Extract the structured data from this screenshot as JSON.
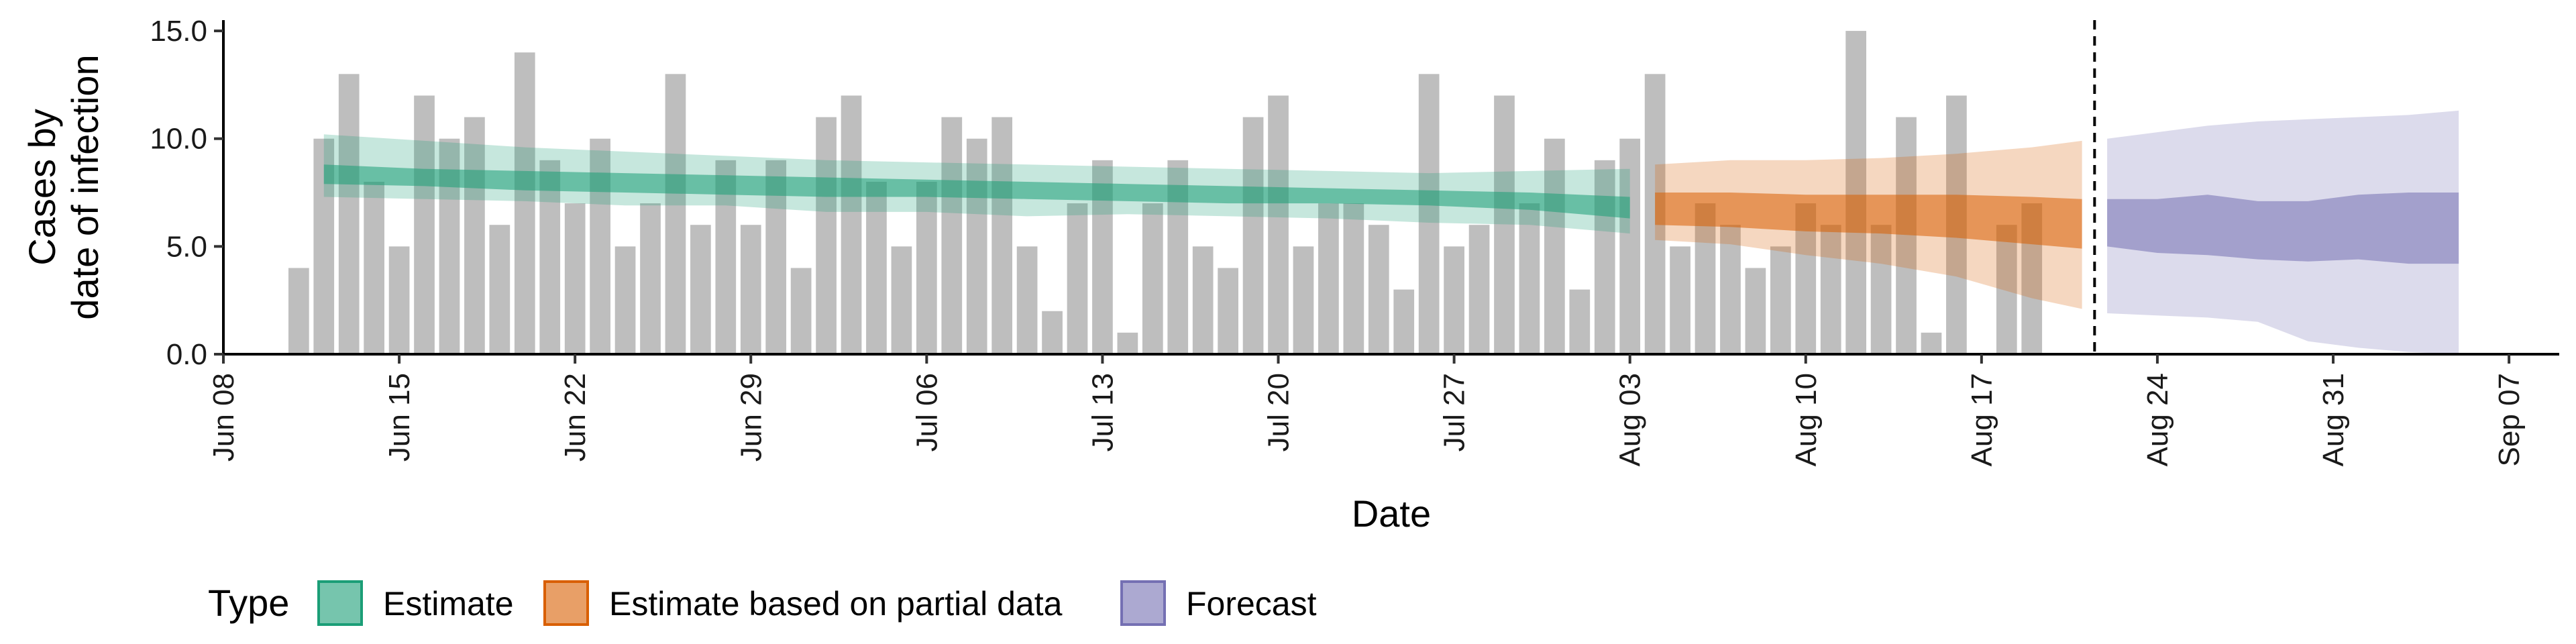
{
  "chart_data": {
    "type": "bar",
    "xlabel": "Date",
    "ylabel_lines": [
      "Cases by",
      "date of infection"
    ],
    "ylim": [
      0,
      15.5
    ],
    "y_ticks": [
      0,
      5,
      10,
      15
    ],
    "y_tick_labels": [
      "0.0",
      "5.0",
      "10.0",
      "15.0"
    ],
    "x_ticks": [
      "2020-06-08",
      "2020-06-15",
      "2020-06-22",
      "2020-06-29",
      "2020-07-06",
      "2020-07-13",
      "2020-07-20",
      "2020-07-27",
      "2020-08-03",
      "2020-08-10",
      "2020-08-17",
      "2020-08-24",
      "2020-08-31",
      "2020-09-07"
    ],
    "x_tick_labels": [
      "Jun 08",
      "Jun 15",
      "Jun 22",
      "Jun 29",
      "Jul 06",
      "Jul 13",
      "Jul 20",
      "Jul 27",
      "Aug 03",
      "Aug 10",
      "Aug 17",
      "Aug 24",
      "Aug 31",
      "Sep 07"
    ],
    "xlim": [
      "2020-06-08",
      "2020-09-09"
    ],
    "grid": false,
    "legend_position": "bottom",
    "colors": {
      "bars": "#bebebe",
      "Estimate": "#1b9e77",
      "Estimate based on partial data": "#d95f02",
      "Forecast": "#7570b3"
    },
    "report_date": "2020-08-21",
    "observed_cases": {
      "dates": [
        "2020-06-11",
        "2020-06-12",
        "2020-06-13",
        "2020-06-14",
        "2020-06-15",
        "2020-06-16",
        "2020-06-17",
        "2020-06-18",
        "2020-06-19",
        "2020-06-20",
        "2020-06-21",
        "2020-06-22",
        "2020-06-23",
        "2020-06-24",
        "2020-06-25",
        "2020-06-26",
        "2020-06-27",
        "2020-06-28",
        "2020-06-29",
        "2020-06-30",
        "2020-07-01",
        "2020-07-02",
        "2020-07-03",
        "2020-07-04",
        "2020-07-05",
        "2020-07-06",
        "2020-07-07",
        "2020-07-08",
        "2020-07-09",
        "2020-07-10",
        "2020-07-11",
        "2020-07-12",
        "2020-07-13",
        "2020-07-14",
        "2020-07-15",
        "2020-07-16",
        "2020-07-17",
        "2020-07-18",
        "2020-07-19",
        "2020-07-20",
        "2020-07-21",
        "2020-07-22",
        "2020-07-23",
        "2020-07-24",
        "2020-07-25",
        "2020-07-26",
        "2020-07-27",
        "2020-07-28",
        "2020-07-29",
        "2020-07-30",
        "2020-07-31",
        "2020-08-01",
        "2020-08-02",
        "2020-08-03",
        "2020-08-04",
        "2020-08-05",
        "2020-08-06",
        "2020-08-07",
        "2020-08-08",
        "2020-08-09",
        "2020-08-10",
        "2020-08-11",
        "2020-08-12",
        "2020-08-13",
        "2020-08-14",
        "2020-08-15",
        "2020-08-16",
        "2020-08-17",
        "2020-08-18",
        "2020-08-19",
        "2020-08-20",
        "2020-08-21"
      ],
      "values": [
        4,
        10,
        13,
        8,
        5,
        12,
        10,
        11,
        6,
        14,
        9,
        7,
        10,
        5,
        7,
        13,
        6,
        9,
        6,
        9,
        4,
        11,
        12,
        8,
        5,
        8,
        11,
        10,
        11,
        5,
        2,
        7,
        9,
        1,
        7,
        9,
        5,
        4,
        11,
        12,
        5,
        7,
        7,
        6,
        3,
        13,
        5,
        6,
        12,
        7,
        10,
        3,
        9,
        10,
        13,
        5,
        7,
        6,
        4,
        5,
        7,
        6,
        15,
        6,
        11,
        1,
        12,
        0,
        6,
        7,
        0,
        0
      ]
    },
    "series": [
      {
        "name": "Estimate",
        "dates": [
          "2020-06-12",
          "2020-06-16",
          "2020-06-20",
          "2020-06-24",
          "2020-06-28",
          "2020-07-02",
          "2020-07-06",
          "2020-07-10",
          "2020-07-14",
          "2020-07-18",
          "2020-07-22",
          "2020-07-26",
          "2020-07-30",
          "2020-08-03"
        ],
        "lower_90": [
          7.3,
          7.2,
          7.1,
          6.9,
          6.9,
          6.6,
          6.6,
          6.4,
          6.5,
          6.4,
          6.3,
          6.1,
          6.0,
          5.6
        ],
        "lower_50": [
          7.9,
          7.8,
          7.6,
          7.5,
          7.4,
          7.3,
          7.3,
          7.2,
          7.1,
          7.0,
          7.0,
          6.9,
          6.7,
          6.3
        ],
        "upper_50": [
          8.8,
          8.6,
          8.5,
          8.4,
          8.3,
          8.2,
          8.1,
          8.0,
          7.9,
          7.8,
          7.7,
          7.6,
          7.5,
          7.3
        ],
        "upper_90": [
          10.2,
          9.9,
          9.6,
          9.4,
          9.2,
          9.0,
          8.9,
          8.8,
          8.7,
          8.6,
          8.5,
          8.4,
          8.5,
          8.6
        ]
      },
      {
        "name": "Estimate based on partial data",
        "dates": [
          "2020-08-04",
          "2020-08-07",
          "2020-08-10",
          "2020-08-13",
          "2020-08-16",
          "2020-08-19",
          "2020-08-21"
        ],
        "lower_90": [
          5.3,
          5.1,
          4.6,
          4.2,
          3.6,
          2.6,
          2.1
        ],
        "lower_50": [
          6.0,
          5.9,
          5.7,
          5.6,
          5.4,
          5.1,
          4.9
        ],
        "upper_50": [
          7.5,
          7.5,
          7.4,
          7.4,
          7.4,
          7.3,
          7.2
        ],
        "upper_90": [
          8.8,
          9.0,
          9.0,
          9.1,
          9.3,
          9.6,
          9.9
        ]
      },
      {
        "name": "Forecast",
        "dates": [
          "2020-08-22",
          "2020-08-24",
          "2020-08-26",
          "2020-08-28",
          "2020-08-30",
          "2020-09-01",
          "2020-09-03",
          "2020-09-05"
        ],
        "lower_90": [
          1.9,
          1.8,
          1.7,
          1.5,
          0.6,
          0.3,
          0.1,
          0.0
        ],
        "lower_50": [
          5.0,
          4.7,
          4.6,
          4.4,
          4.3,
          4.4,
          4.2,
          4.2
        ],
        "upper_50": [
          7.2,
          7.2,
          7.4,
          7.1,
          7.1,
          7.4,
          7.5,
          7.5
        ],
        "upper_90": [
          10.0,
          10.3,
          10.6,
          10.8,
          10.9,
          11.0,
          11.1,
          11.3
        ]
      }
    ],
    "legend": {
      "title": "Type",
      "entries": [
        "Estimate",
        "Estimate based on partial data",
        "Forecast"
      ]
    }
  }
}
